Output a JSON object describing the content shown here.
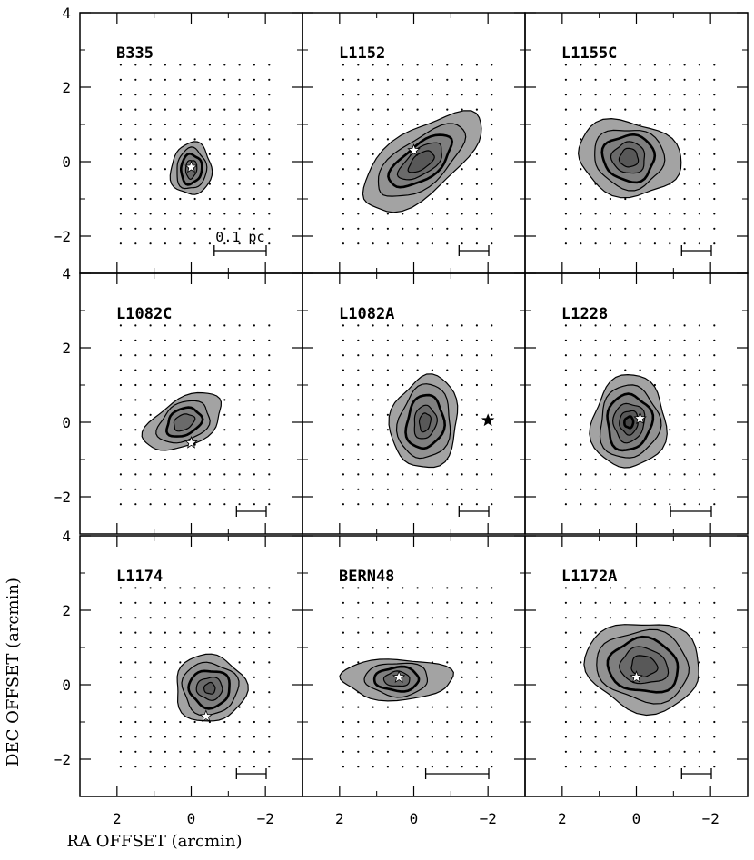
{
  "chart_data": {
    "type": "contour",
    "xlabel": "RA OFFSET (arcmin)",
    "ylabel": "DEC OFFSET (arcmin)",
    "xlim": [
      3,
      -3
    ],
    "ylim": [
      -3,
      4
    ],
    "x_tick_labels": [
      "2",
      "0",
      "−2"
    ],
    "y_tick_labels": [
      "4",
      "2",
      "0",
      "−2"
    ],
    "scale_bar_label": "0.1 pc",
    "panels": [
      {
        "name": "B335",
        "star": [
          0.0,
          -0.15
        ],
        "star_color": "white",
        "peak": [
          0.0,
          -0.2
        ],
        "scalebar_arcmin": 1.4,
        "contours": [
          [
            0.55,
            0.7
          ],
          [
            0.4,
            0.55
          ],
          [
            0.28,
            0.4
          ],
          [
            0.15,
            0.25
          ]
        ]
      },
      {
        "name": "L1152",
        "star": [
          0.0,
          0.3
        ],
        "star_color": "white",
        "peak": [
          -0.2,
          0.0
        ],
        "scalebar_arcmin": 0.8,
        "contours": [
          [
            1.9,
            0.85
          ],
          [
            1.4,
            0.62
          ],
          [
            1.0,
            0.45
          ],
          [
            0.7,
            0.33
          ],
          [
            0.4,
            0.2
          ]
        ]
      },
      {
        "name": "L1155C",
        "star": null,
        "star_color": "white",
        "peak": [
          0.2,
          0.1
        ],
        "scalebar_arcmin": 0.8,
        "contours": [
          [
            1.4,
            1.0
          ],
          [
            0.95,
            0.8
          ],
          [
            0.7,
            0.62
          ],
          [
            0.45,
            0.42
          ],
          [
            0.25,
            0.25
          ]
        ]
      },
      {
        "name": "L1082C",
        "star": [
          0.0,
          -0.55
        ],
        "star_color": "white",
        "peak": [
          0.2,
          0.0
        ],
        "scalebar_arcmin": 0.8,
        "contours": [
          [
            1.15,
            0.62
          ],
          [
            0.75,
            0.5
          ],
          [
            0.5,
            0.35
          ],
          [
            0.3,
            0.2
          ]
        ]
      },
      {
        "name": "L1082A",
        "star": [
          -2.0,
          0.05
        ],
        "star_color": "black",
        "peak": [
          -0.3,
          0.0
        ],
        "scalebar_arcmin": 0.8,
        "contours": [
          [
            0.9,
            1.25
          ],
          [
            0.7,
            1.0
          ],
          [
            0.5,
            0.72
          ],
          [
            0.3,
            0.45
          ],
          [
            0.15,
            0.25
          ]
        ]
      },
      {
        "name": "L1228",
        "star": [
          -0.1,
          0.1
        ],
        "star_color": "white",
        "peak": [
          0.2,
          0.0
        ],
        "scalebar_arcmin": 1.1,
        "contours": [
          [
            1.0,
            1.25
          ],
          [
            0.8,
            0.98
          ],
          [
            0.6,
            0.75
          ],
          [
            0.42,
            0.52
          ],
          [
            0.25,
            0.32
          ],
          [
            0.12,
            0.15
          ]
        ]
      },
      {
        "name": "L1174",
        "star": [
          -0.4,
          -0.85
        ],
        "star_color": "white",
        "peak": [
          -0.5,
          -0.1
        ],
        "scalebar_arcmin": 0.8,
        "contours": [
          [
            0.95,
            0.9
          ],
          [
            0.75,
            0.7
          ],
          [
            0.55,
            0.5
          ],
          [
            0.35,
            0.3
          ],
          [
            0.15,
            0.15
          ]
        ]
      },
      {
        "name": "BERN48",
        "star": [
          0.4,
          0.2
        ],
        "star_color": "white",
        "peak": [
          0.45,
          0.15
        ],
        "scalebar_arcmin": 1.7,
        "contours": [
          [
            1.5,
            0.55
          ],
          [
            0.85,
            0.45
          ],
          [
            0.6,
            0.32
          ],
          [
            0.35,
            0.2
          ]
        ]
      },
      {
        "name": "L1172A",
        "star": [
          -0.0,
          0.2
        ],
        "star_color": "white",
        "peak": [
          -0.2,
          0.5
        ],
        "scalebar_arcmin": 0.8,
        "contours": [
          [
            1.55,
            1.2
          ],
          [
            1.25,
            0.95
          ],
          [
            0.95,
            0.72
          ],
          [
            0.65,
            0.48
          ],
          [
            0.35,
            0.28
          ]
        ]
      }
    ]
  }
}
